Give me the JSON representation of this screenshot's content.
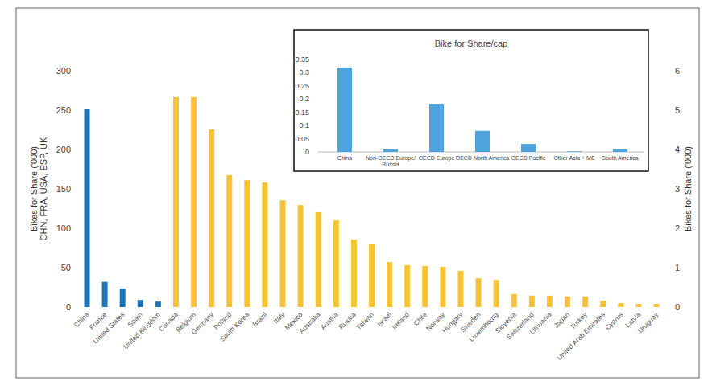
{
  "chart_data": [
    {
      "type": "bar",
      "ylabel": [
        "Bikes for Share ('000)",
        "CHN, FRA, USA, ESP, UK"
      ],
      "y2label": "Bikes for Share ('000)",
      "categories": [
        "China",
        "France",
        "United States",
        "Spain",
        "United Kingdom",
        "Canada",
        "Belgium",
        "Germany",
        "Poland",
        "South Korea",
        "Brazil",
        "Italy",
        "Mexico",
        "Australia",
        "Austria",
        "Russia",
        "Taiwan",
        "Israel",
        "Ireland",
        "Chile",
        "Norway",
        "Hungary",
        "Sweden",
        "Luxembourg",
        "Slovenia",
        "Switzerland",
        "Lithuania",
        "Japan",
        "Turkey",
        "United Arab Emirates",
        "Cyprus",
        "Latvia",
        "Uruguay"
      ],
      "series": [
        {
          "color": "#1b75bb",
          "values": [
            251,
            32,
            23.5,
            9,
            7,
            null,
            null,
            null,
            null,
            null,
            null,
            null,
            null,
            null,
            null,
            null,
            null,
            null,
            null,
            null,
            null,
            null,
            null,
            null,
            null,
            null,
            null,
            null,
            null,
            null,
            null,
            null,
            null
          ]
        },
        {
          "color": "#f7c233",
          "axis": "y2",
          "values": [
            null,
            null,
            null,
            null,
            null,
            5.33,
            5.33,
            4.51,
            3.35,
            3.22,
            3.16,
            2.71,
            2.59,
            2.41,
            2.2,
            1.71,
            1.59,
            1.14,
            1.06,
            1.04,
            1.02,
            0.92,
            0.73,
            0.69,
            0.33,
            0.29,
            0.29,
            0.27,
            0.27,
            0.16,
            0.1,
            0.08,
            0.08
          ]
        }
      ],
      "ylim": [
        0,
        300
      ],
      "yticks": [
        0,
        50,
        100,
        150,
        200,
        250,
        300
      ],
      "y2lim": [
        0,
        6
      ],
      "y2ticks": [
        0,
        1,
        2,
        3,
        4,
        5,
        6
      ],
      "grid": false
    },
    {
      "type": "bar",
      "title": "Bike for Share/cap",
      "categories": [
        "China",
        "Non-OECD Europe/ Russia",
        "OECD Europe",
        "OECD North America",
        "OECD Pacific",
        "Other Asia + ME",
        "South America"
      ],
      "values": [
        0.32,
        0.01,
        0.18,
        0.08,
        0.03,
        0.002,
        0.01
      ],
      "color": "#4fa3dc",
      "ylim": [
        0,
        0.35
      ],
      "yticks": [
        0,
        0.05,
        0.1,
        0.15,
        0.2,
        0.25,
        0.3,
        0.35
      ],
      "grid": false
    }
  ]
}
